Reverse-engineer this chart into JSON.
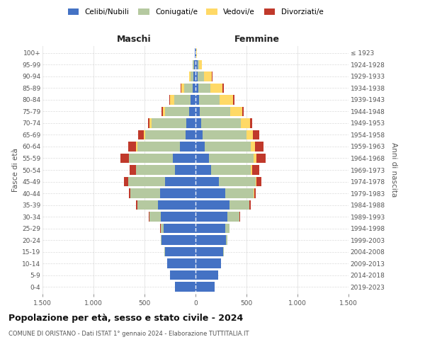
{
  "age_groups": [
    "0-4",
    "5-9",
    "10-14",
    "15-19",
    "20-24",
    "25-29",
    "30-34",
    "35-39",
    "40-44",
    "45-49",
    "50-54",
    "55-59",
    "60-64",
    "65-69",
    "70-74",
    "75-79",
    "80-84",
    "85-89",
    "90-94",
    "95-99",
    "100+"
  ],
  "birth_years": [
    "2019-2023",
    "2014-2018",
    "2009-2013",
    "2004-2008",
    "1999-2003",
    "1994-1998",
    "1989-1993",
    "1984-1988",
    "1979-1983",
    "1974-1978",
    "1969-1973",
    "1964-1968",
    "1959-1963",
    "1954-1958",
    "1949-1953",
    "1944-1948",
    "1939-1943",
    "1934-1938",
    "1929-1933",
    "1924-1928",
    "≤ 1923"
  ],
  "maschi": {
    "celibi": [
      200,
      250,
      280,
      300,
      330,
      310,
      340,
      370,
      350,
      300,
      200,
      220,
      150,
      100,
      90,
      60,
      50,
      30,
      20,
      15,
      5
    ],
    "coniugati": [
      0,
      0,
      0,
      5,
      10,
      30,
      110,
      200,
      290,
      360,
      380,
      430,
      420,
      390,
      340,
      240,
      160,
      80,
      30,
      10,
      2
    ],
    "vedovi": [
      0,
      0,
      0,
      0,
      0,
      0,
      0,
      0,
      0,
      0,
      5,
      5,
      10,
      15,
      20,
      20,
      40,
      30,
      15,
      5,
      0
    ],
    "divorziati": [
      0,
      0,
      0,
      0,
      0,
      5,
      10,
      15,
      15,
      40,
      60,
      80,
      80,
      60,
      15,
      10,
      10,
      5,
      0,
      0,
      0
    ]
  },
  "femmine": {
    "nubili": [
      185,
      220,
      250,
      270,
      300,
      290,
      310,
      330,
      290,
      230,
      150,
      130,
      90,
      70,
      55,
      40,
      35,
      25,
      20,
      20,
      5
    ],
    "coniugate": [
      0,
      0,
      0,
      5,
      10,
      40,
      120,
      200,
      280,
      360,
      390,
      440,
      450,
      430,
      390,
      300,
      200,
      120,
      60,
      15,
      2
    ],
    "vedove": [
      0,
      0,
      0,
      0,
      0,
      0,
      0,
      0,
      5,
      5,
      15,
      25,
      40,
      60,
      90,
      120,
      130,
      120,
      80,
      30,
      5
    ],
    "divorziate": [
      0,
      0,
      0,
      0,
      0,
      5,
      5,
      15,
      15,
      50,
      70,
      90,
      90,
      65,
      20,
      15,
      15,
      10,
      5,
      0,
      0
    ]
  },
  "colors": {
    "celibi": "#4472c4",
    "coniugati": "#b5c9a0",
    "vedovi": "#ffd966",
    "divorziati": "#c0392b"
  },
  "xlim": 1500,
  "xticks": [
    -1500,
    -1000,
    -500,
    0,
    500,
    1000,
    1500
  ],
  "xtick_labels": [
    "1.500",
    "1.000",
    "500",
    "0",
    "500",
    "1.000",
    "1.500"
  ],
  "title": "Popolazione per età, sesso e stato civile - 2024",
  "subtitle": "COMUNE DI ORISTANO - Dati ISTAT 1° gennaio 2024 - Elaborazione TUTTITALIA.IT",
  "ylabel_left": "Fasce di età",
  "ylabel_right": "Anni di nascita",
  "maschi_label": "Maschi",
  "femmine_label": "Femmine",
  "legend_labels": [
    "Celibi/Nubili",
    "Coniugati/e",
    "Vedovi/e",
    "Divorziati/e"
  ],
  "bg_color": "#ffffff",
  "grid_color": "#cccccc"
}
